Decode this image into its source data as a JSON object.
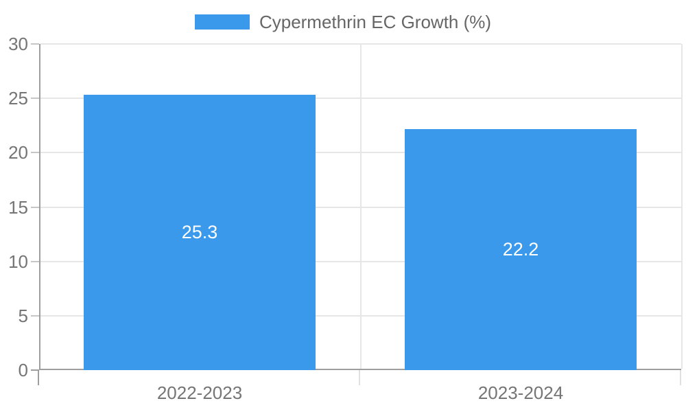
{
  "chart_data": {
    "type": "bar",
    "title": "",
    "xlabel": "",
    "ylabel": "",
    "categories": [
      "2022-2023",
      "2023-2024"
    ],
    "series": [
      {
        "name": "Cypermethrin EC Growth (%)",
        "values": [
          25.3,
          22.2
        ],
        "color": "#3b99ec"
      }
    ],
    "data_labels": [
      "25.3",
      "22.2"
    ],
    "ylim": [
      0,
      30
    ],
    "yticks": [
      0,
      5,
      10,
      15,
      20,
      25,
      30
    ],
    "grid": true,
    "legend": {
      "label": "Cypermethrin EC Growth (%)",
      "position": "top"
    },
    "colors": {
      "bar": "#3b99ec",
      "gridline": "#e6e6e6",
      "axis": "#9e9e9e",
      "tick": "#c6c6c6",
      "axis_label": "#757575",
      "legend_label": "#666666",
      "data_label": "#ffffff",
      "background": "#ffffff"
    }
  }
}
